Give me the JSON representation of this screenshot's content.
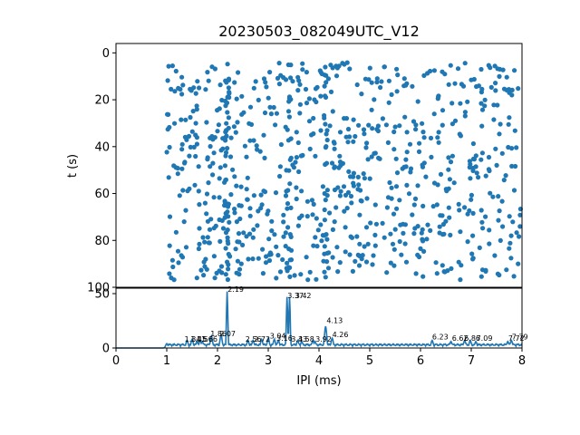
{
  "chart_data": [
    {
      "type": "scatter",
      "title": "20230503_082049UTC_V12",
      "xlabel": "",
      "ylabel": "t (s)",
      "xlim": [
        0,
        8
      ],
      "ylim": [
        100,
        -4
      ],
      "y_inverted": true,
      "yticks": [
        0,
        20,
        40,
        60,
        80,
        100
      ],
      "grid": false,
      "marker_color": "#1f77b4",
      "x_range_of_points": [
        1.0,
        8.0
      ],
      "y_range_of_points": [
        4,
        97
      ],
      "dense_columns_ipi_ms": [
        2.19,
        3.37,
        3.42,
        4.13
      ]
    },
    {
      "type": "line",
      "title": "",
      "xlabel": "IPI (ms)",
      "ylabel": "",
      "xlim": [
        0,
        8
      ],
      "ylim": [
        0,
        55
      ],
      "xticks": [
        0,
        1,
        2,
        3,
        4,
        5,
        6,
        7,
        8
      ],
      "yticks": [
        0,
        50
      ],
      "grid": false,
      "line_color": "#1f77b4",
      "series": [
        {
          "peaks": [
            {
              "x": 1.0,
              "y": 4
            },
            {
              "x": 1.4,
              "y": 7
            },
            {
              "x": 1.5,
              "y": 8
            },
            {
              "x": 1.6,
              "y": 6
            },
            {
              "x": 1.66,
              "y": 7
            },
            {
              "x": 1.7,
              "y": 6
            },
            {
              "x": 1.88,
              "y": 11
            },
            {
              "x": 2.07,
              "y": 12
            },
            {
              "x": 2.19,
              "y": 52
            },
            {
              "x": 2.6,
              "y": 7
            },
            {
              "x": 2.7,
              "y": 7
            },
            {
              "x": 2.87,
              "y": 8
            },
            {
              "x": 3.0,
              "y": 9
            },
            {
              "x": 3.12,
              "y": 8
            },
            {
              "x": 3.2,
              "y": 7
            },
            {
              "x": 3.37,
              "y": 47
            },
            {
              "x": 3.42,
              "y": 47
            },
            {
              "x": 3.58,
              "y": 7
            },
            {
              "x": 3.66,
              "y": 6
            },
            {
              "x": 3.88,
              "y": 7
            },
            {
              "x": 3.92,
              "y": 6
            },
            {
              "x": 4.13,
              "y": 20
            },
            {
              "x": 4.26,
              "y": 9
            },
            {
              "x": 6.23,
              "y": 7
            },
            {
              "x": 6.6,
              "y": 6
            },
            {
              "x": 6.87,
              "y": 7
            },
            {
              "x": 6.98,
              "y": 7
            },
            {
              "x": 7.09,
              "y": 6
            },
            {
              "x": 7.72,
              "y": 6
            },
            {
              "x": 7.79,
              "y": 7
            }
          ]
        }
      ],
      "annotations": [
        {
          "x": 1.35,
          "y": 5,
          "text": "1.34"
        },
        {
          "x": 1.47,
          "y": 5,
          "text": "1.45"
        },
        {
          "x": 1.59,
          "y": 5,
          "text": "1.56"
        },
        {
          "x": 1.68,
          "y": 5,
          "text": "1.66"
        },
        {
          "x": 1.86,
          "y": 10,
          "text": "1.86"
        },
        {
          "x": 2.04,
          "y": 10,
          "text": "2.07"
        },
        {
          "x": 2.2,
          "y": 51,
          "text": "2.19"
        },
        {
          "x": 2.55,
          "y": 5,
          "text": "2.56"
        },
        {
          "x": 2.72,
          "y": 5,
          "text": "2.72"
        },
        {
          "x": 3.03,
          "y": 8,
          "text": "3.04"
        },
        {
          "x": 3.16,
          "y": 6,
          "text": "3.16"
        },
        {
          "x": 3.45,
          "y": 5,
          "text": "3.43"
        },
        {
          "x": 3.59,
          "y": 5,
          "text": "3.58"
        },
        {
          "x": 3.38,
          "y": 45,
          "text": "3.37"
        },
        {
          "x": 3.53,
          "y": 45,
          "text": "3.42"
        },
        {
          "x": 3.93,
          "y": 5,
          "text": "3.92"
        },
        {
          "x": 4.15,
          "y": 22,
          "text": "4.13"
        },
        {
          "x": 4.26,
          "y": 9,
          "text": "4.26"
        },
        {
          "x": 6.23,
          "y": 7,
          "text": "6.23"
        },
        {
          "x": 6.62,
          "y": 6,
          "text": "6.62"
        },
        {
          "x": 6.86,
          "y": 6,
          "text": "6.86"
        },
        {
          "x": 7.1,
          "y": 6,
          "text": "7.09"
        },
        {
          "x": 7.73,
          "y": 6,
          "text": "7.72"
        },
        {
          "x": 7.8,
          "y": 7,
          "text": "7.79"
        }
      ]
    }
  ]
}
